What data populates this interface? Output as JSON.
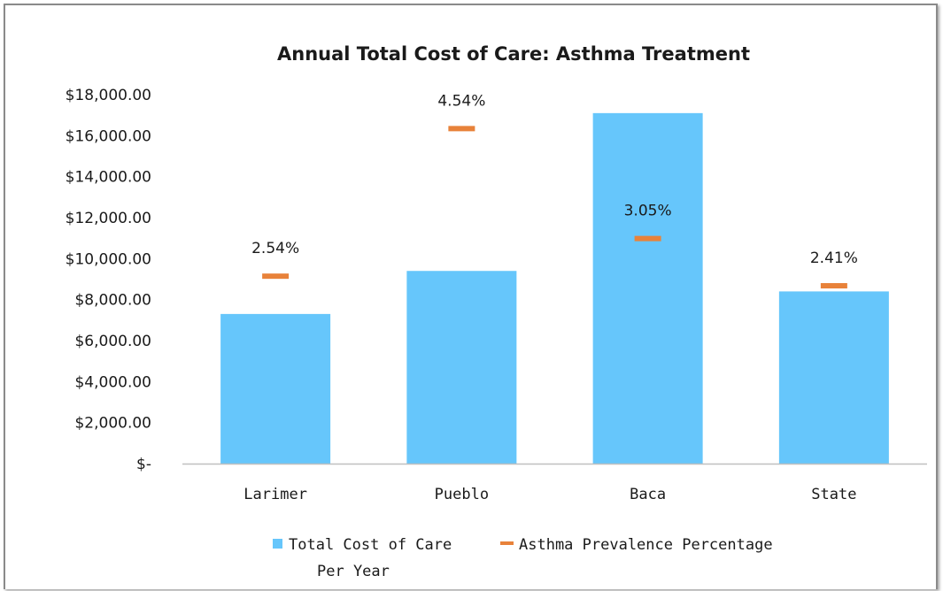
{
  "chart_data": {
    "type": "bar",
    "title": "Annual Total Cost of Care: Asthma Treatment",
    "categories": [
      "Larimer",
      "Pueblo",
      "Baca",
      "State"
    ],
    "ylim": [
      0,
      18000
    ],
    "yticks": [
      {
        "value": 0,
        "label": "$-"
      },
      {
        "value": 2000,
        "label": "$2,000.00"
      },
      {
        "value": 4000,
        "label": "$4,000.00"
      },
      {
        "value": 6000,
        "label": "$6,000.00"
      },
      {
        "value": 8000,
        "label": "$8,000.00"
      },
      {
        "value": 10000,
        "label": "$10,000.00"
      },
      {
        "value": 12000,
        "label": "$12,000.00"
      },
      {
        "value": 14000,
        "label": "$14,000.00"
      },
      {
        "value": 16000,
        "label": "$16,000.00"
      },
      {
        "value": 18000,
        "label": "$18,000.00"
      }
    ],
    "grid": false,
    "legend": "bottom",
    "series": [
      {
        "name": "Total Cost of Care Per Year",
        "legend_lines": [
          "Total Cost of Care",
          "Per Year"
        ],
        "type": "bar",
        "color": "#66c6fb",
        "values": [
          7300,
          9400,
          17100,
          8400
        ]
      },
      {
        "name": "Asthma Prevalence Percentage",
        "type": "marker",
        "marker": "dash",
        "color": "#e8823a",
        "values": [
          2.54,
          4.54,
          3.05,
          2.41
        ],
        "labels": [
          "2.54%",
          "4.54%",
          "3.05%",
          "2.41%"
        ],
        "ylim": [
          0,
          5
        ]
      }
    ]
  }
}
